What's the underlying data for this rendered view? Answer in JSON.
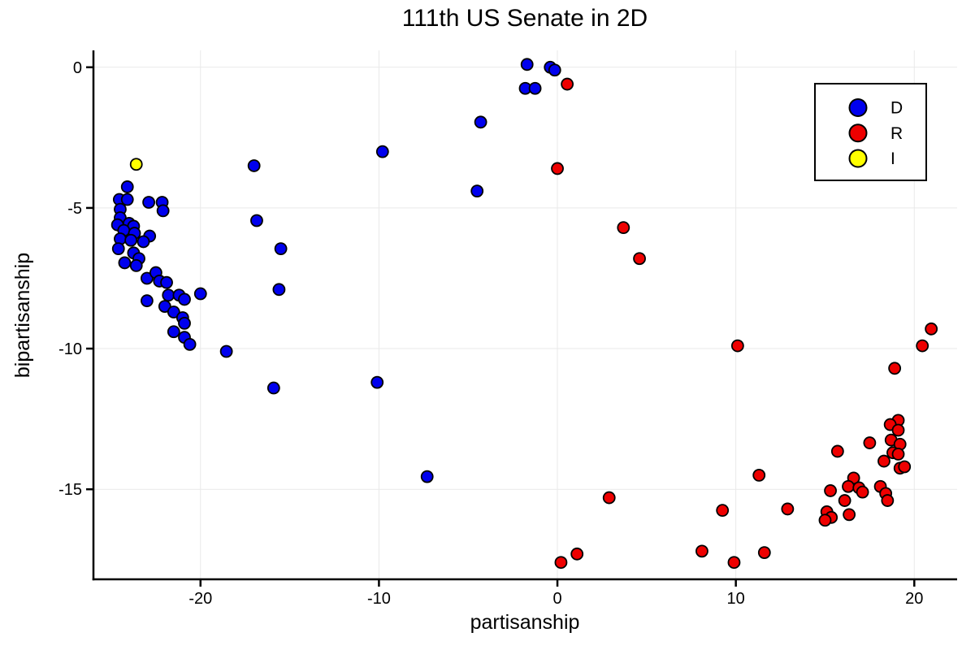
{
  "chart_data": {
    "type": "scatter",
    "title": "111th US Senate in 2D",
    "xlabel": "partisanship",
    "ylabel": "bipartisanship",
    "xlim": [
      -26.0,
      22.4
    ],
    "ylim": [
      -18.2,
      0.6
    ],
    "xticks": [
      -20,
      -10,
      0,
      10,
      20
    ],
    "yticks": [
      0,
      -5,
      -10,
      -15
    ],
    "grid": true,
    "legend_position": "top-right",
    "grid_color": "#e9e9e9",
    "axis_color": "#000000",
    "marker_stroke": "#000000",
    "series": [
      {
        "name": "D",
        "color": "#0000ee",
        "points": [
          [
            -1.7,
            0.1
          ],
          [
            -0.4,
            0.0
          ],
          [
            -0.15,
            -0.1
          ],
          [
            -1.8,
            -0.75
          ],
          [
            -1.25,
            -0.75
          ],
          [
            -4.3,
            -1.95
          ],
          [
            -4.5,
            -4.4
          ],
          [
            -9.8,
            -3.0
          ],
          [
            -17.0,
            -3.5
          ],
          [
            -16.85,
            -5.45
          ],
          [
            -15.5,
            -6.45
          ],
          [
            -15.6,
            -7.9
          ],
          [
            -18.55,
            -10.1
          ],
          [
            -15.9,
            -11.4
          ],
          [
            -10.1,
            -11.2
          ],
          [
            -7.3,
            -14.55
          ],
          [
            -24.1,
            -4.25
          ],
          [
            -24.55,
            -4.7
          ],
          [
            -24.1,
            -4.7
          ],
          [
            -22.9,
            -4.8
          ],
          [
            -22.15,
            -4.8
          ],
          [
            -22.1,
            -5.1
          ],
          [
            -24.5,
            -5.05
          ],
          [
            -24.5,
            -5.35
          ],
          [
            -24.0,
            -5.55
          ],
          [
            -24.65,
            -5.6
          ],
          [
            -23.75,
            -5.65
          ],
          [
            -24.3,
            -5.8
          ],
          [
            -23.7,
            -5.9
          ],
          [
            -24.5,
            -6.1
          ],
          [
            -23.9,
            -6.15
          ],
          [
            -22.85,
            -6.0
          ],
          [
            -23.2,
            -6.2
          ],
          [
            -24.6,
            -6.45
          ],
          [
            -23.75,
            -6.6
          ],
          [
            -23.45,
            -6.8
          ],
          [
            -24.25,
            -6.95
          ],
          [
            -23.6,
            -7.05
          ],
          [
            -23.0,
            -7.5
          ],
          [
            -22.5,
            -7.3
          ],
          [
            -22.3,
            -7.6
          ],
          [
            -21.9,
            -7.65
          ],
          [
            -23.0,
            -8.3
          ],
          [
            -21.8,
            -8.1
          ],
          [
            -21.2,
            -8.1
          ],
          [
            -20.9,
            -8.25
          ],
          [
            -20.0,
            -8.05
          ],
          [
            -22.0,
            -8.5
          ],
          [
            -21.5,
            -8.7
          ],
          [
            -21.0,
            -8.9
          ],
          [
            -20.9,
            -9.1
          ],
          [
            -21.5,
            -9.4
          ],
          [
            -20.9,
            -9.6
          ],
          [
            -20.6,
            -9.85
          ]
        ]
      },
      {
        "name": "R",
        "color": "#ee0000",
        "points": [
          [
            0.55,
            -0.6
          ],
          [
            0.0,
            -3.6
          ],
          [
            3.7,
            -5.7
          ],
          [
            4.6,
            -6.8
          ],
          [
            10.1,
            -9.9
          ],
          [
            20.95,
            -9.3
          ],
          [
            20.45,
            -9.9
          ],
          [
            18.9,
            -10.7
          ],
          [
            19.1,
            -12.55
          ],
          [
            18.65,
            -12.7
          ],
          [
            19.1,
            -12.9
          ],
          [
            18.7,
            -13.25
          ],
          [
            19.2,
            -13.4
          ],
          [
            17.5,
            -13.35
          ],
          [
            15.7,
            -13.65
          ],
          [
            18.8,
            -13.7
          ],
          [
            19.1,
            -13.75
          ],
          [
            18.3,
            -14.0
          ],
          [
            19.2,
            -14.25
          ],
          [
            19.45,
            -14.2
          ],
          [
            16.6,
            -14.6
          ],
          [
            16.3,
            -14.9
          ],
          [
            16.9,
            -14.95
          ],
          [
            17.1,
            -15.1
          ],
          [
            15.3,
            -15.05
          ],
          [
            18.1,
            -14.9
          ],
          [
            18.4,
            -15.15
          ],
          [
            16.1,
            -15.4
          ],
          [
            18.5,
            -15.4
          ],
          [
            15.1,
            -15.8
          ],
          [
            15.35,
            -16.0
          ],
          [
            16.35,
            -15.9
          ],
          [
            15.0,
            -16.1
          ],
          [
            11.3,
            -14.5
          ],
          [
            9.25,
            -15.75
          ],
          [
            12.9,
            -15.7
          ],
          [
            8.1,
            -17.2
          ],
          [
            9.9,
            -17.6
          ],
          [
            11.6,
            -17.25
          ],
          [
            2.9,
            -15.3
          ],
          [
            0.2,
            -17.6
          ],
          [
            1.1,
            -17.3
          ]
        ]
      },
      {
        "name": "I",
        "color": "#ffff00",
        "points": [
          [
            -23.6,
            -3.45
          ]
        ]
      }
    ]
  }
}
